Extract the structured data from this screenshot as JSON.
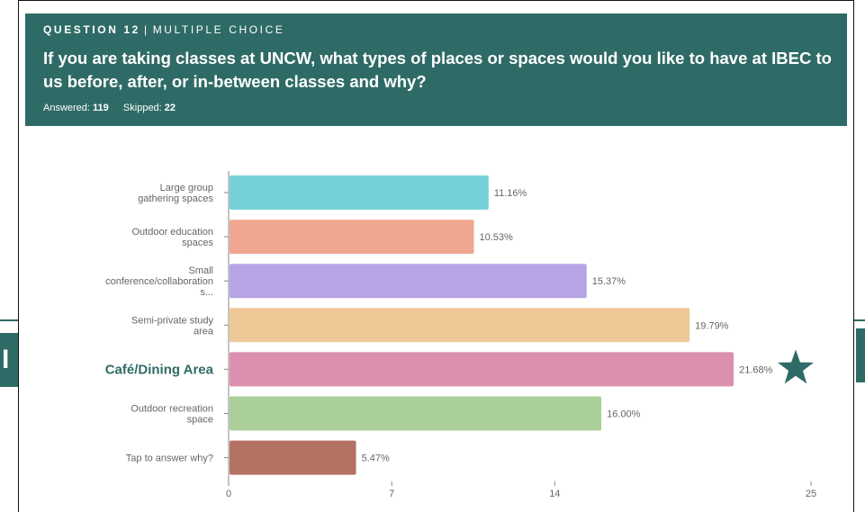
{
  "header": {
    "question_label": "QUESTION 12",
    "separator": "|",
    "question_type": "MULTIPLE CHOICE",
    "question_text": "If you are taking classes at UNCW, what types of places or spaces would you like to have at IBEC to us before, after, or in-between classes and why?",
    "answered_label": "Answered:",
    "answered_value": "119",
    "skipped_label": "Skipped:",
    "skipped_value": "22"
  },
  "background": {
    "left_fragment": "I",
    "accent_color": "#2f6b66"
  },
  "chart_data": {
    "type": "bar",
    "orientation": "horizontal",
    "categories": [
      [
        "Large group",
        "gathering spaces"
      ],
      [
        "Outdoor education",
        "spaces"
      ],
      [
        "Small",
        "conference/collaboration",
        "s..."
      ],
      [
        "Semi-private study",
        "area"
      ],
      [
        "Café/Dining Area"
      ],
      [
        "Outdoor recreation",
        "space"
      ],
      [
        "Tap to answer why?"
      ]
    ],
    "values": [
      11.16,
      10.53,
      15.37,
      19.79,
      21.68,
      16.0,
      5.47
    ],
    "value_labels": [
      "11.16%",
      "10.53%",
      "15.37%",
      "19.79%",
      "21.68%",
      "16.00%",
      "5.47%"
    ],
    "colors": [
      "#76d0d8",
      "#f0a78f",
      "#b7a4e6",
      "#eec896",
      "#dc8fae",
      "#abcf99",
      "#b47262"
    ],
    "highlight_index": 4,
    "highlight_color": "#2f6b66",
    "highlight_marker": "star-icon",
    "xlim": [
      0,
      25
    ],
    "xticks": [
      "0",
      "7",
      "14",
      "25"
    ],
    "xtick_values": [
      0,
      7,
      14,
      25
    ],
    "grid": false,
    "title": "",
    "xlabel": "",
    "ylabel": ""
  }
}
